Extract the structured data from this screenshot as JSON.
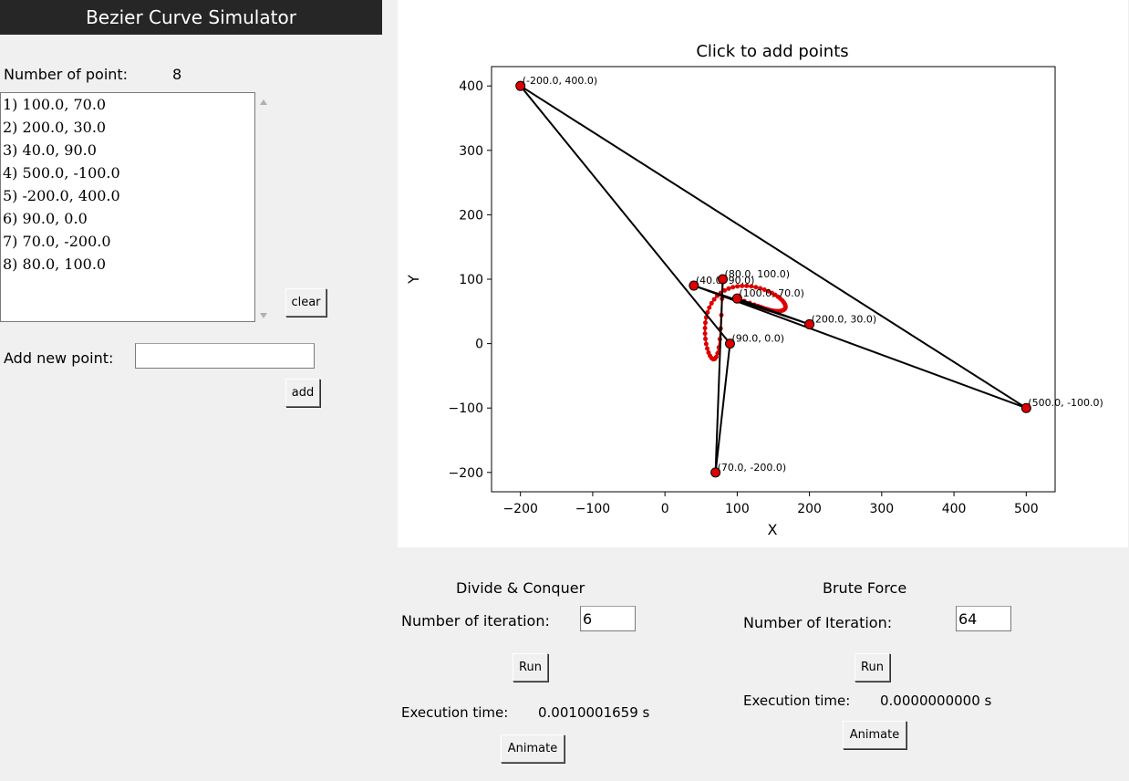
{
  "app": {
    "title": "Bezier Curve Simulator"
  },
  "points_panel": {
    "count_label": "Number of point:",
    "count_value": "8",
    "items": [
      "1) 100.0, 70.0",
      "2) 200.0, 30.0",
      "3) 40.0, 90.0",
      "4) 500.0, -100.0",
      "5) -200.0, 400.0",
      "6) 90.0, 0.0",
      "7) 70.0, -200.0",
      "8) 80.0, 100.0"
    ],
    "clear_label": "clear",
    "add_label": "Add new point:",
    "add_value": "",
    "add_button": "add"
  },
  "divide_conquer": {
    "title": "Divide & Conquer",
    "iter_label": "Number of iteration:",
    "iter_value": "6",
    "run": "Run",
    "time_label": "Execution time:",
    "time_value": "0.0010001659 s",
    "animate": "Animate"
  },
  "brute_force": {
    "title": "Brute Force",
    "iter_label": "Number of Iteration:",
    "iter_value": "64",
    "run": "Run",
    "time_label": "Execution time:",
    "time_value": "0.0000000000 s",
    "animate": "Animate"
  },
  "chart_data": {
    "type": "scatter",
    "title": "Click to add points",
    "xlabel": "X",
    "ylabel": "Y",
    "xlim": [
      -240,
      540
    ],
    "ylim": [
      -230,
      430
    ],
    "xticks": [
      -200,
      -100,
      0,
      100,
      200,
      300,
      400,
      500
    ],
    "yticks": [
      -200,
      -100,
      0,
      100,
      200,
      300,
      400
    ],
    "grid": false,
    "control_points": [
      {
        "x": 100,
        "y": 70,
        "label": "(100.0, 70.0)"
      },
      {
        "x": 200,
        "y": 30,
        "label": "(200.0, 30.0)"
      },
      {
        "x": 40,
        "y": 90,
        "label": "(40.0, 90.0)"
      },
      {
        "x": 500,
        "y": -100,
        "label": "(500.0, -100.0)"
      },
      {
        "x": -200,
        "y": 400,
        "label": "(-200.0, 400.0)"
      },
      {
        "x": 90,
        "y": 0,
        "label": "(90.0, 0.0)"
      },
      {
        "x": 70,
        "y": -200,
        "label": "(70.0, -200.0)"
      },
      {
        "x": 80,
        "y": 100,
        "label": "(80.0, 100.0)"
      }
    ],
    "control_polygon_color": "#000000",
    "point_color": "#dd0000",
    "curve_color": "#dd0000"
  }
}
